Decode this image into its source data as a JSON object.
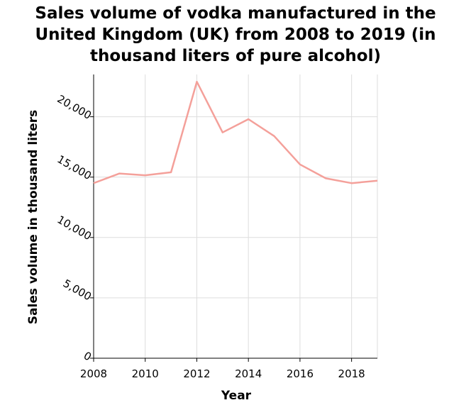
{
  "chart_data": {
    "type": "line",
    "title_lines": [
      "Sales volume of vodka manufactured in the",
      "United Kingdom (UK) from 2008 to 2019 (in",
      "thousand liters of pure alcohol)"
    ],
    "xlabel": "Year",
    "ylabel": "Sales volume in thousand liters",
    "xlim": [
      2008,
      2019
    ],
    "ylim": [
      0,
      23500
    ],
    "x_ticks": [
      2008,
      2010,
      2012,
      2014,
      2016,
      2018
    ],
    "x_tick_labels": [
      "2008",
      "2010",
      "2012",
      "2014",
      "2016",
      "2018"
    ],
    "y_ticks": [
      0,
      5000,
      10000,
      15000,
      20000
    ],
    "y_tick_labels": [
      "0",
      "5,000",
      "10,000",
      "15,000",
      "20,000"
    ],
    "grid": true,
    "series": [
      {
        "color": "#f4a09a",
        "x": [
          2008,
          2009,
          2010,
          2011,
          2012,
          2013,
          2014,
          2015,
          2016,
          2017,
          2018,
          2019
        ],
        "values": [
          14500,
          15300,
          15150,
          15400,
          22900,
          18700,
          19800,
          18400,
          16050,
          14900,
          14500,
          14700
        ]
      }
    ]
  }
}
